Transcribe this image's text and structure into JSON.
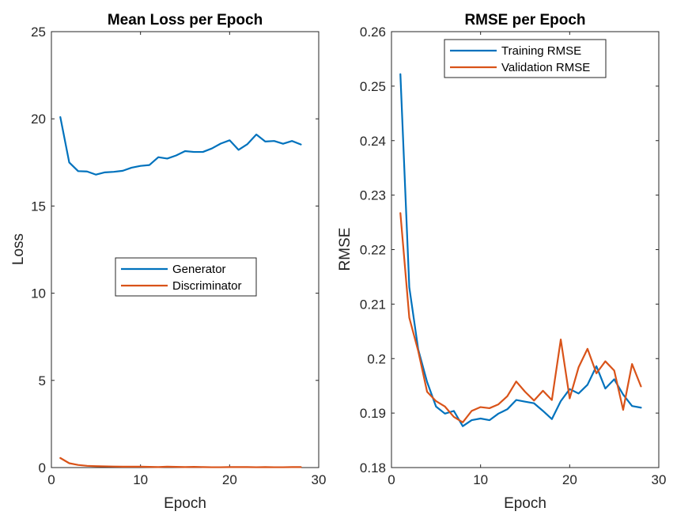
{
  "chart_data": [
    {
      "type": "line",
      "title": "Mean Loss per Epoch",
      "xlabel": "Epoch",
      "ylabel": "Loss",
      "xlim": [
        0,
        30
      ],
      "ylim": [
        0,
        25
      ],
      "xticks": [
        "0",
        "10",
        "20",
        "30"
      ],
      "yticks": [
        "0",
        "5",
        "10",
        "15",
        "20",
        "25"
      ],
      "legend_position": "center-right",
      "grid": false,
      "x": [
        1,
        2,
        3,
        4,
        5,
        6,
        7,
        8,
        9,
        10,
        11,
        12,
        13,
        14,
        15,
        16,
        17,
        18,
        19,
        20,
        21,
        22,
        23,
        24,
        25,
        26,
        27,
        28
      ],
      "series": [
        {
          "name": "Generator",
          "color": "#0072BD",
          "values": [
            20.1,
            17.5,
            17.0,
            16.98,
            16.8,
            16.93,
            16.96,
            17.02,
            17.2,
            17.3,
            17.35,
            17.8,
            17.72,
            17.9,
            18.15,
            18.1,
            18.1,
            18.3,
            18.58,
            18.77,
            18.22,
            18.55,
            19.1,
            18.7,
            18.73,
            18.57,
            18.73,
            18.53
          ]
        },
        {
          "name": "Discriminator",
          "color": "#D95319",
          "values": [
            0.55,
            0.25,
            0.15,
            0.1,
            0.08,
            0.07,
            0.06,
            0.05,
            0.05,
            0.05,
            0.04,
            0.03,
            0.05,
            0.04,
            0.03,
            0.04,
            0.03,
            0.02,
            0.02,
            0.03,
            0.03,
            0.03,
            0.02,
            0.03,
            0.02,
            0.02,
            0.03,
            0.03
          ]
        }
      ]
    },
    {
      "type": "line",
      "title": "RMSE per Epoch",
      "xlabel": "Epoch",
      "ylabel": "RMSE",
      "xlim": [
        0,
        30
      ],
      "ylim": [
        0.18,
        0.26
      ],
      "xticks": [
        "0",
        "10",
        "20",
        "30"
      ],
      "yticks": [
        "0.18",
        "0.19",
        "0.2",
        "0.21",
        "0.22",
        "0.23",
        "0.24",
        "0.25",
        "0.26"
      ],
      "legend_position": "top-center",
      "grid": false,
      "x": [
        1,
        2,
        3,
        4,
        5,
        6,
        7,
        8,
        9,
        10,
        11,
        12,
        13,
        14,
        15,
        16,
        17,
        18,
        19,
        20,
        21,
        22,
        23,
        24,
        25,
        26,
        27,
        28
      ],
      "series": [
        {
          "name": "Training RMSE",
          "color": "#0072BD",
          "values": [
            0.2522,
            0.2131,
            0.2017,
            0.1957,
            0.1912,
            0.1899,
            0.1904,
            0.1876,
            0.1887,
            0.189,
            0.1887,
            0.1899,
            0.1907,
            0.1924,
            0.1921,
            0.1918,
            0.1904,
            0.1889,
            0.1922,
            0.1944,
            0.1936,
            0.1952,
            0.1986,
            0.1945,
            0.1962,
            0.1934,
            0.1913,
            0.191
          ]
        },
        {
          "name": "Validation RMSE",
          "color": "#D95319",
          "values": [
            0.2267,
            0.2075,
            0.2014,
            0.1939,
            0.1922,
            0.1912,
            0.1893,
            0.1883,
            0.1904,
            0.1911,
            0.1909,
            0.1916,
            0.1931,
            0.1958,
            0.1939,
            0.1923,
            0.1941,
            0.1924,
            0.2035,
            0.1927,
            0.1984,
            0.2018,
            0.1973,
            0.1995,
            0.1978,
            0.1906,
            0.199,
            0.1949
          ]
        }
      ]
    }
  ]
}
